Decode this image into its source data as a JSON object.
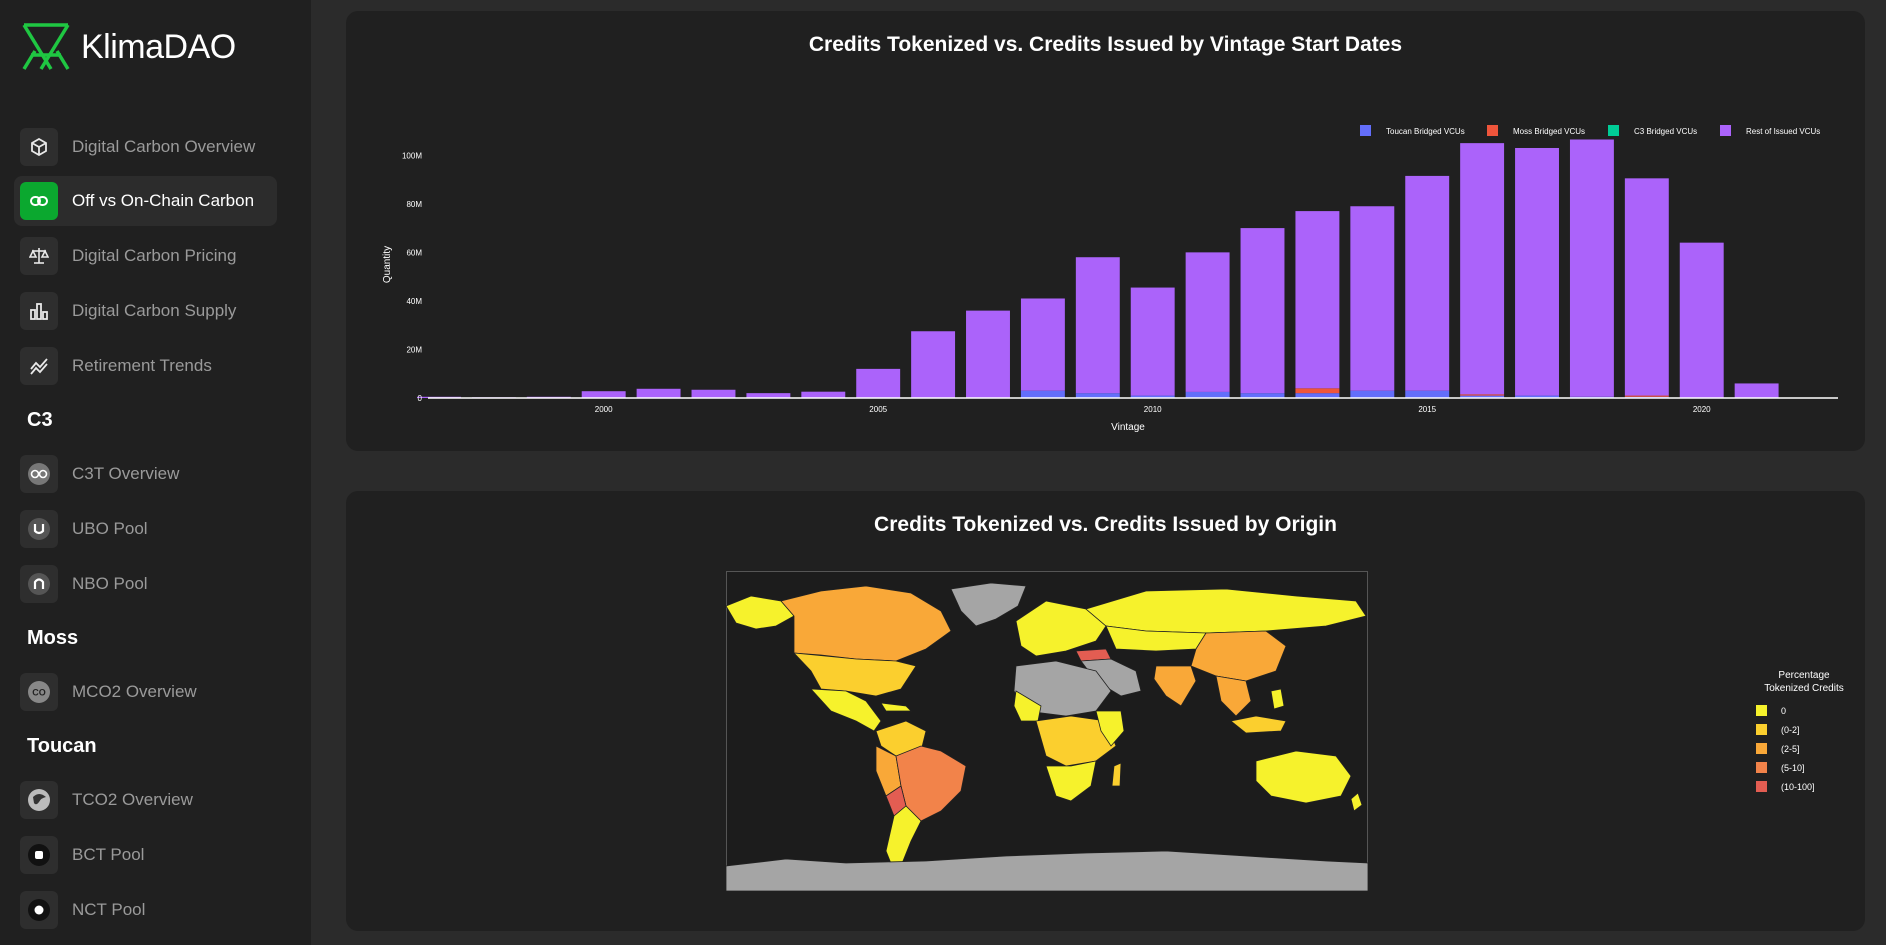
{
  "app": {
    "title": "KlimaDAO"
  },
  "colors": {
    "accent": "#0ba82f",
    "toucan": "#636efa",
    "moss": "#ef553b",
    "c3": "#00cc96",
    "rest": "#ab63fa"
  },
  "sidebar": {
    "items": [
      {
        "label": "Digital Carbon Overview",
        "icon": "cube-icon"
      },
      {
        "label": "Off vs On-Chain Carbon",
        "icon": "link-icon",
        "active": true
      },
      {
        "label": "Digital Carbon Pricing",
        "icon": "scale-icon"
      },
      {
        "label": "Digital Carbon Supply",
        "icon": "bar-chart-icon"
      },
      {
        "label": "Retirement Trends",
        "icon": "trend-icon"
      }
    ],
    "sections": [
      {
        "title": "C3",
        "items": [
          {
            "label": "C3T Overview",
            "icon": "c3t-token-icon"
          },
          {
            "label": "UBO Pool",
            "icon": "ubo-token-icon"
          },
          {
            "label": "NBO Pool",
            "icon": "nbo-token-icon"
          }
        ]
      },
      {
        "title": "Moss",
        "items": [
          {
            "label": "MCO2 Overview",
            "icon": "mco2-token-icon"
          }
        ]
      },
      {
        "title": "Toucan",
        "items": [
          {
            "label": "TCO2 Overview",
            "icon": "tco2-token-icon"
          },
          {
            "label": "BCT Pool",
            "icon": "bct-token-icon"
          },
          {
            "label": "NCT Pool",
            "icon": "nct-token-icon"
          }
        ]
      }
    ]
  },
  "chart1": {
    "title": "Credits Tokenized vs. Credits Issued by Vintage Start Dates"
  },
  "chart2": {
    "title": "Credits Tokenized vs. Credits Issued by Origin",
    "legend_title_line1": "Percentage",
    "legend_title_line2": "Tokenized Credits",
    "legend": [
      {
        "label": "0",
        "color": "#f6f22c"
      },
      {
        "label": "(0-2]",
        "color": "#fbcf2e"
      },
      {
        "label": "(2-5]",
        "color": "#f9a838"
      },
      {
        "label": "(5-10]",
        "color": "#f2834a"
      },
      {
        "label": "(10-100]",
        "color": "#e35d52"
      }
    ]
  },
  "chart_data": [
    {
      "type": "bar",
      "stacked": true,
      "title": "Credits Tokenized vs. Credits Issued by Vintage Start Dates",
      "xlabel": "Vintage",
      "ylabel": "Quantity",
      "x": [
        1997,
        1998,
        1999,
        2000,
        2001,
        2002,
        2003,
        2004,
        2005,
        2006,
        2007,
        2008,
        2009,
        2010,
        2011,
        2012,
        2013,
        2014,
        2015,
        2016,
        2017,
        2018,
        2019,
        2020,
        2021,
        2022
      ],
      "xticks": [
        "2000",
        "2005",
        "2010",
        "2015",
        "2020"
      ],
      "ylim": [
        0,
        110000000
      ],
      "yticks": [
        "0",
        "20M",
        "40M",
        "60M",
        "80M",
        "100M"
      ],
      "legend_position": "top-right",
      "grid": false,
      "series": [
        {
          "name": "Toucan Bridged VCUs",
          "values": [
            0,
            0,
            0,
            0,
            0,
            0,
            0,
            0,
            0,
            0,
            0,
            3000000,
            2000000,
            1000000,
            2500000,
            2000000,
            2000000,
            3000000,
            3000000,
            1000000,
            1000000,
            500000,
            500000,
            0,
            0,
            0
          ]
        },
        {
          "name": "Moss Bridged VCUs",
          "values": [
            0,
            0,
            0,
            0,
            0,
            0,
            0,
            0,
            0,
            0,
            0,
            0,
            0,
            0,
            0,
            0,
            2000000,
            0,
            0,
            500000,
            0,
            0,
            500000,
            0,
            0,
            0
          ]
        },
        {
          "name": "C3 Bridged VCUs",
          "values": [
            0,
            0,
            0,
            0,
            0,
            0,
            0,
            0,
            0,
            0,
            0,
            0,
            0,
            0,
            0,
            0,
            0,
            0,
            0,
            0,
            0,
            0,
            0,
            0,
            0,
            0
          ]
        },
        {
          "name": "Rest of Issued VCUs",
          "values": [
            500000,
            300000,
            500000,
            2800000,
            3800000,
            3400000,
            2000000,
            2600000,
            12000000,
            27500000,
            36000000,
            38000000,
            56000000,
            44500000,
            57500000,
            68000000,
            73000000,
            76000000,
            88500000,
            103500000,
            102000000,
            106000000,
            89500000,
            64000000,
            6000000,
            0
          ]
        }
      ]
    }
  ]
}
